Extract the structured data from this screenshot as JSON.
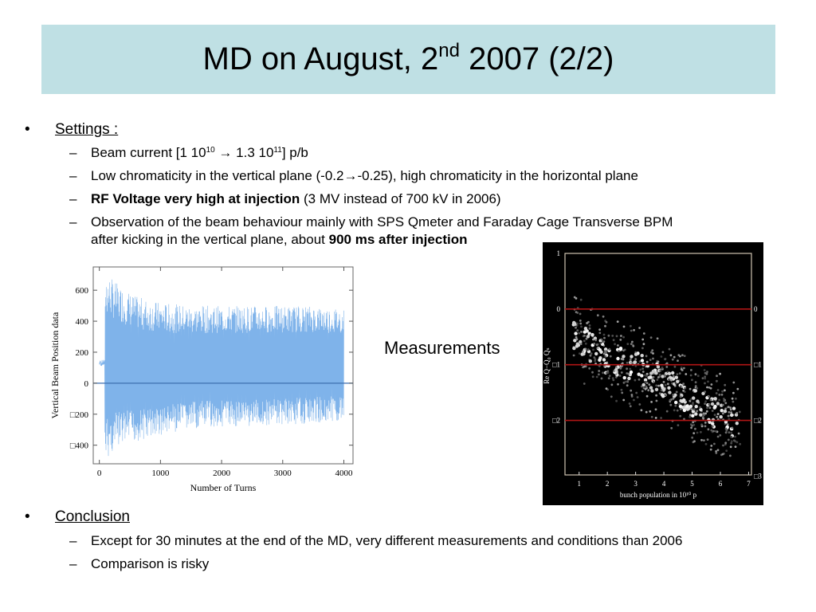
{
  "title": {
    "prefix": "MD on August, 2",
    "sup": "nd",
    "suffix": " 2007 (2/2)"
  },
  "settings": {
    "heading": "Settings :",
    "items": [
      {
        "a": "Beam current [1 10",
        "sup1": "10",
        "b": " → 1.3 10",
        "sup2": "11",
        "c": "] p/b"
      },
      {
        "text": "Low chromaticity in the vertical plane (-0.2→-0.25), high chromaticity in the horizontal plane"
      },
      {
        "bold": "RF Voltage very high at injection",
        "rest": " (3 MV instead of 700 kV in 2006)"
      },
      {
        "line1": "Observation of the beam behaviour mainly with SPS Qmeter and Faraday Cage Transverse BPM",
        "line2": "after kicking in the vertical plane, about ",
        "bold": "900 ms after injection"
      }
    ]
  },
  "measurements_label": "Measurements",
  "conclusion": {
    "heading": "Conclusion",
    "items": [
      "Except for 30 minutes at the end of the MD, very different measurements and conditions than 2006",
      "Comparison is risky"
    ]
  },
  "chart_data": [
    {
      "type": "line",
      "xlabel": "Number of Turns",
      "ylabel": "Vertical Beam Position data",
      "xlim": [
        -100,
        4150
      ],
      "ylim": [
        -520,
        750
      ],
      "xticks": [
        0,
        1000,
        2000,
        3000,
        4000
      ],
      "yticks": [
        600,
        400,
        200,
        0,
        -200,
        -400
      ],
      "yticklabels": [
        "600",
        "400",
        "200",
        "0",
        "□200",
        "□400"
      ],
      "envelope": {
        "x": [
          0,
          100,
          300,
          600,
          1000,
          1500,
          2000,
          2500,
          3000,
          3500,
          4000
        ],
        "upper": [
          150,
          720,
          640,
          560,
          520,
          500,
          500,
          500,
          500,
          500,
          480
        ],
        "lower": [
          100,
          -500,
          -420,
          -380,
          -340,
          -300,
          -280,
          -280,
          -270,
          -260,
          -240
        ]
      },
      "baseline": 0,
      "series_color": "#7fb3ea"
    },
    {
      "type": "scatter",
      "xlabel": "bunch population in 10¹⁰ p",
      "ylabel": "Re Q−Q₀  Qₛ",
      "xlim": [
        0.5,
        7.1
      ],
      "ylim": [
        -2.98,
        1
      ],
      "xticks": [
        1,
        2,
        3,
        4,
        5,
        6,
        7
      ],
      "yticks_left": [
        1,
        0,
        -1,
        -2
      ],
      "yticklabels_left": [
        "1",
        "0",
        "□1",
        "□2"
      ],
      "yticks_right": [
        0,
        -1,
        -2,
        -3
      ],
      "yticklabels_right": [
        "0",
        "□1",
        "□2",
        "□3"
      ],
      "hlines": [
        0,
        -1,
        -2
      ],
      "hline_color": "#b01515",
      "trend": {
        "x": [
          0.8,
          2,
          3,
          4,
          5,
          6,
          6.6
        ],
        "y": [
          -0.5,
          -0.95,
          -1.1,
          -1.35,
          -1.7,
          -1.95,
          -2.15
        ]
      }
    }
  ]
}
